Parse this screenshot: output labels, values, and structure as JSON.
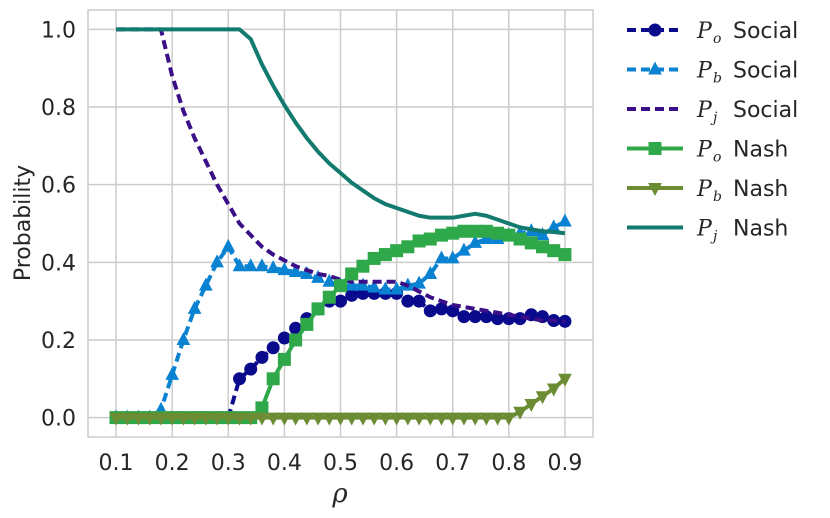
{
  "chart_data": {
    "type": "line",
    "xlabel": "ρ",
    "ylabel": "Probability",
    "xlim": [
      0.05,
      0.95
    ],
    "ylim": [
      -0.05,
      1.05
    ],
    "xticks": [
      "0.1",
      "0.2",
      "0.3",
      "0.4",
      "0.5",
      "0.6",
      "0.7",
      "0.8",
      "0.9"
    ],
    "yticks": [
      "0.0",
      "0.2",
      "0.4",
      "0.6",
      "0.8",
      "1.0"
    ],
    "grid": true,
    "legend_placement": "outside-right",
    "x": [
      0.1,
      0.12,
      0.14,
      0.16,
      0.18,
      0.2,
      0.22,
      0.24,
      0.26,
      0.28,
      0.3,
      0.32,
      0.34,
      0.36,
      0.38,
      0.4,
      0.42,
      0.44,
      0.46,
      0.48,
      0.5,
      0.52,
      0.54,
      0.56,
      0.58,
      0.6,
      0.62,
      0.64,
      0.66,
      0.68,
      0.7,
      0.72,
      0.74,
      0.76,
      0.78,
      0.8,
      0.82,
      0.84,
      0.86,
      0.88,
      0.9
    ],
    "series": [
      {
        "name": "Social",
        "symbol": "P",
        "subscript": "o",
        "color": "#0a0a8c",
        "dash": "dashed",
        "marker": "circle",
        "values": [
          0.0,
          0.0,
          0.0,
          0.0,
          0.0,
          0.0,
          0.0,
          0.0,
          0.0,
          0.0,
          0.0,
          0.1,
          0.125,
          0.155,
          0.18,
          0.205,
          0.23,
          0.255,
          0.28,
          0.3,
          0.3,
          0.315,
          0.32,
          0.32,
          0.32,
          0.32,
          0.3,
          0.3,
          0.275,
          0.28,
          0.275,
          0.26,
          0.26,
          0.26,
          0.255,
          0.255,
          0.255,
          0.265,
          0.26,
          0.25,
          0.248
        ]
      },
      {
        "name": "Social",
        "symbol": "P",
        "subscript": "b",
        "color": "#0a82d2",
        "dash": "dashed",
        "marker": "triangle-up",
        "values": [
          0.0,
          0.0,
          0.0,
          0.0,
          0.02,
          0.11,
          0.2,
          0.28,
          0.34,
          0.4,
          0.44,
          0.39,
          0.39,
          0.39,
          0.385,
          0.38,
          0.375,
          0.37,
          0.36,
          0.35,
          0.34,
          0.34,
          0.34,
          0.335,
          0.33,
          0.33,
          0.34,
          0.345,
          0.37,
          0.41,
          0.41,
          0.43,
          0.45,
          0.46,
          0.46,
          0.47,
          0.475,
          0.48,
          0.47,
          0.49,
          0.505
        ]
      },
      {
        "name": "Social",
        "symbol": "P",
        "subscript": "j",
        "color": "#3a0f87",
        "dash": "dashed",
        "marker": "none",
        "values": [
          1.0,
          1.0,
          1.0,
          1.0,
          1.0,
          0.88,
          0.79,
          0.72,
          0.66,
          0.6,
          0.55,
          0.5,
          0.47,
          0.44,
          0.42,
          0.405,
          0.39,
          0.38,
          0.37,
          0.365,
          0.355,
          0.35,
          0.35,
          0.35,
          0.35,
          0.35,
          0.34,
          0.325,
          0.31,
          0.3,
          0.29,
          0.285,
          0.28,
          0.275,
          0.27,
          0.265,
          0.26,
          0.255,
          0.25,
          0.25,
          0.248
        ]
      },
      {
        "name": "Nash",
        "symbol": "P",
        "subscript": "o",
        "color": "#2fa84a",
        "dash": "solid",
        "marker": "square",
        "values": [
          0.0,
          0.0,
          0.0,
          0.0,
          0.0,
          0.0,
          0.0,
          0.0,
          0.0,
          0.0,
          0.0,
          0.0,
          0.0,
          0.025,
          0.1,
          0.15,
          0.2,
          0.24,
          0.28,
          0.31,
          0.34,
          0.37,
          0.39,
          0.41,
          0.42,
          0.43,
          0.44,
          0.455,
          0.46,
          0.47,
          0.475,
          0.48,
          0.48,
          0.48,
          0.475,
          0.47,
          0.46,
          0.45,
          0.44,
          0.43,
          0.42
        ]
      },
      {
        "name": "Nash",
        "symbol": "P",
        "subscript": "b",
        "color": "#6b8c33",
        "dash": "solid",
        "marker": "triangle-down",
        "values": [
          0.0,
          0.0,
          0.0,
          0.0,
          0.0,
          0.0,
          0.0,
          0.0,
          0.0,
          0.0,
          0.0,
          0.0,
          0.0,
          0.0,
          0.0,
          0.0,
          0.0,
          0.0,
          0.0,
          0.0,
          0.0,
          0.0,
          0.0,
          0.0,
          0.0,
          0.0,
          0.0,
          0.0,
          0.0,
          0.0,
          0.0,
          0.0,
          0.0,
          0.0,
          0.0,
          0.0,
          0.015,
          0.035,
          0.055,
          0.075,
          0.1
        ]
      },
      {
        "name": "Nash",
        "symbol": "P",
        "subscript": "j",
        "color": "#127a6e",
        "dash": "solid",
        "marker": "none",
        "values": [
          1.0,
          1.0,
          1.0,
          1.0,
          1.0,
          1.0,
          1.0,
          1.0,
          1.0,
          1.0,
          1.0,
          1.0,
          0.975,
          0.91,
          0.855,
          0.805,
          0.76,
          0.72,
          0.685,
          0.655,
          0.63,
          0.605,
          0.585,
          0.565,
          0.55,
          0.54,
          0.53,
          0.52,
          0.515,
          0.515,
          0.515,
          0.52,
          0.525,
          0.52,
          0.51,
          0.5,
          0.49,
          0.485,
          0.48,
          0.478,
          0.475
        ]
      }
    ]
  }
}
